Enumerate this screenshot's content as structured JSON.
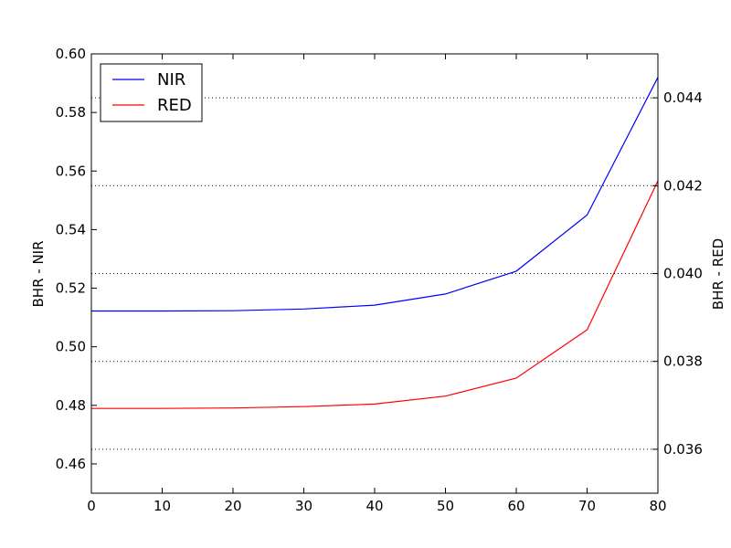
{
  "chart_data": {
    "type": "line",
    "x": [
      0,
      10,
      20,
      30,
      40,
      50,
      60,
      70,
      80
    ],
    "x_ticks": [
      "0",
      "10",
      "20",
      "30",
      "40",
      "50",
      "60",
      "70",
      "80"
    ],
    "xlim": [
      0,
      80
    ],
    "left_axis": {
      "label": "BHR - NIR",
      "ylim": [
        0.45,
        0.6
      ],
      "ticks": [
        "0.46",
        "0.48",
        "0.50",
        "0.52",
        "0.54",
        "0.56",
        "0.58",
        "0.60"
      ],
      "tick_values": [
        0.46,
        0.48,
        0.5,
        0.52,
        0.54,
        0.56,
        0.58,
        0.6
      ]
    },
    "right_axis": {
      "label": "BHR - RED",
      "ylim": [
        0.035,
        0.045
      ],
      "ticks": [
        "0.036",
        "0.038",
        "0.040",
        "0.042",
        "0.044"
      ],
      "tick_values": [
        0.036,
        0.038,
        0.04,
        0.042,
        0.044
      ]
    },
    "grid": "dotted horizontal lines at right-axis ticks",
    "series": [
      {
        "name": "NIR",
        "axis": "left",
        "color": "#0000ff",
        "values": [
          0.5122,
          0.5122,
          0.5123,
          0.5129,
          0.5142,
          0.518,
          0.5258,
          0.545,
          0.592
        ]
      },
      {
        "name": "RED",
        "axis": "right",
        "color": "#ff0000",
        "values": [
          0.03693,
          0.03693,
          0.03694,
          0.03697,
          0.03703,
          0.03721,
          0.03762,
          0.03872,
          0.04211
        ]
      }
    ],
    "legend": {
      "placement": "top-left",
      "items": [
        "NIR",
        "RED"
      ]
    }
  }
}
